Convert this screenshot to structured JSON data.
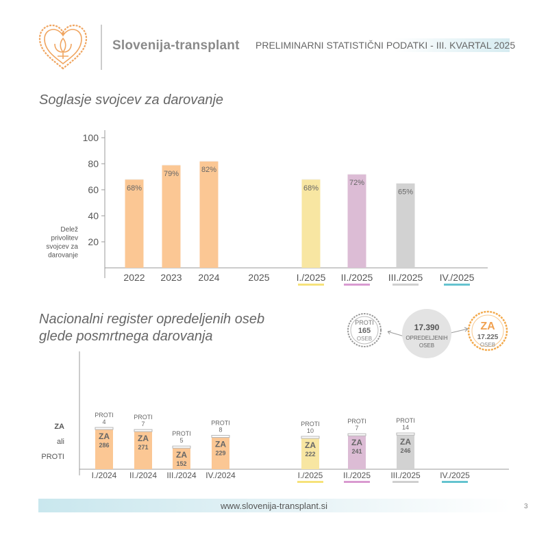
{
  "header": {
    "brand": "Slovenija-transplant",
    "title": "PRELIMINARNI STATISTIČNI PODATKI - III. KVARTAL 2025"
  },
  "section1": {
    "title": "Soglasje svojcev za darovanje"
  },
  "section2": {
    "title_line1": "Nacionalni register opredeljenih oseb",
    "title_line2": "glede posmrtnega darovanja"
  },
  "summary": {
    "proti": {
      "label": "PROTI",
      "value": "165",
      "unit": "OSEB"
    },
    "total": {
      "value": "17.390",
      "label1": "OPREDELJENIH",
      "label2": "OSEB"
    },
    "za": {
      "label": "ZA",
      "value": "17.225",
      "unit": "OSEB"
    }
  },
  "footer": {
    "url": "www.slovenija-transplant.si",
    "page": "3"
  },
  "chart_data": [
    {
      "type": "bar",
      "ylabel_lines": [
        "Delež",
        "privolitev",
        "svojcev za",
        "darovanje"
      ],
      "ylim": [
        0,
        100
      ],
      "yticks": [
        "20",
        "40",
        "60",
        "80",
        "100"
      ],
      "categories": [
        "2022",
        "2023",
        "2024",
        "2025",
        "I./2025",
        "II./2025",
        "III./2025",
        "IV./2025"
      ],
      "values": [
        68,
        79,
        82,
        null,
        68,
        72,
        65,
        null
      ],
      "value_labels": [
        "68%",
        "79%",
        "82%",
        "",
        "68%",
        "72%",
        "65%",
        ""
      ],
      "colors": [
        "#fbc794",
        "#fbc794",
        "#fbc794",
        "",
        "#f8e6a2",
        "#dcbcd5",
        "#d2d2d2",
        ""
      ],
      "underline_colors": [
        "",
        "",
        "",
        "",
        "#f6e27a",
        "#d99ad0",
        "#cfcfcf",
        "#64c3cf"
      ],
      "grid": false
    },
    {
      "type": "bar",
      "stacked": true,
      "ylabel_lines": [
        "ZA",
        "ali",
        "PROTI"
      ],
      "categories": [
        "I./2024",
        "II./2024",
        "III./2024",
        "IV./2024",
        "I./2025",
        "II./2025",
        "III./2025",
        "IV./2025"
      ],
      "series": [
        {
          "name": "ZA",
          "values": [
            286,
            271,
            152,
            229,
            222,
            241,
            246,
            null
          ]
        },
        {
          "name": "PROTI",
          "values": [
            4,
            7,
            5,
            8,
            10,
            7,
            14,
            null
          ]
        }
      ],
      "colors": [
        "#fbc794",
        "#fbc794",
        "#fbc794",
        "#fbc794",
        "#f8e6a2",
        "#dcbcd5",
        "#d2d2d2",
        ""
      ],
      "underline_colors": [
        "",
        "",
        "",
        "",
        "#f6e27a",
        "#d99ad0",
        "#cfcfcf",
        "#64c3cf"
      ],
      "grid": false
    }
  ]
}
